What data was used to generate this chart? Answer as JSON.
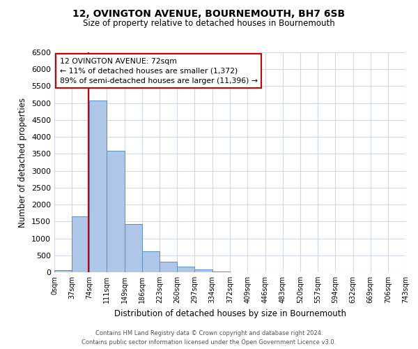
{
  "title": "12, OVINGTON AVENUE, BOURNEMOUTH, BH7 6SB",
  "subtitle": "Size of property relative to detached houses in Bournemouth",
  "xlabel": "Distribution of detached houses by size in Bournemouth",
  "ylabel": "Number of detached properties",
  "bin_edges": [
    0,
    37,
    74,
    111,
    149,
    186,
    223,
    260,
    297,
    334,
    372,
    409,
    446,
    483,
    520,
    557,
    594,
    632,
    669,
    706,
    743
  ],
  "bin_labels": [
    "0sqm",
    "37sqm",
    "74sqm",
    "111sqm",
    "149sqm",
    "186sqm",
    "223sqm",
    "260sqm",
    "297sqm",
    "334sqm",
    "372sqm",
    "409sqm",
    "446sqm",
    "483sqm",
    "520sqm",
    "557sqm",
    "594sqm",
    "632sqm",
    "669sqm",
    "706sqm",
    "743sqm"
  ],
  "counts": [
    60,
    1650,
    5080,
    3600,
    1430,
    620,
    310,
    155,
    80,
    30,
    10,
    5,
    0,
    0,
    0,
    0,
    0,
    0,
    0,
    0
  ],
  "bar_color": "#aec6e8",
  "bar_edge_color": "#5a8fc2",
  "property_line_x": 72,
  "property_line_color": "#cc0000",
  "annotation_title": "12 OVINGTON AVENUE: 72sqm",
  "annotation_line1": "← 11% of detached houses are smaller (1,372)",
  "annotation_line2": "89% of semi-detached houses are larger (11,396) →",
  "annotation_box_color": "#cc0000",
  "ylim": [
    0,
    6500
  ],
  "yticks": [
    0,
    500,
    1000,
    1500,
    2000,
    2500,
    3000,
    3500,
    4000,
    4500,
    5000,
    5500,
    6000,
    6500
  ],
  "footer_line1": "Contains HM Land Registry data © Crown copyright and database right 2024.",
  "footer_line2": "Contains public sector information licensed under the Open Government Licence v3.0.",
  "bg_color": "#ffffff",
  "grid_color": "#d0d8e8"
}
